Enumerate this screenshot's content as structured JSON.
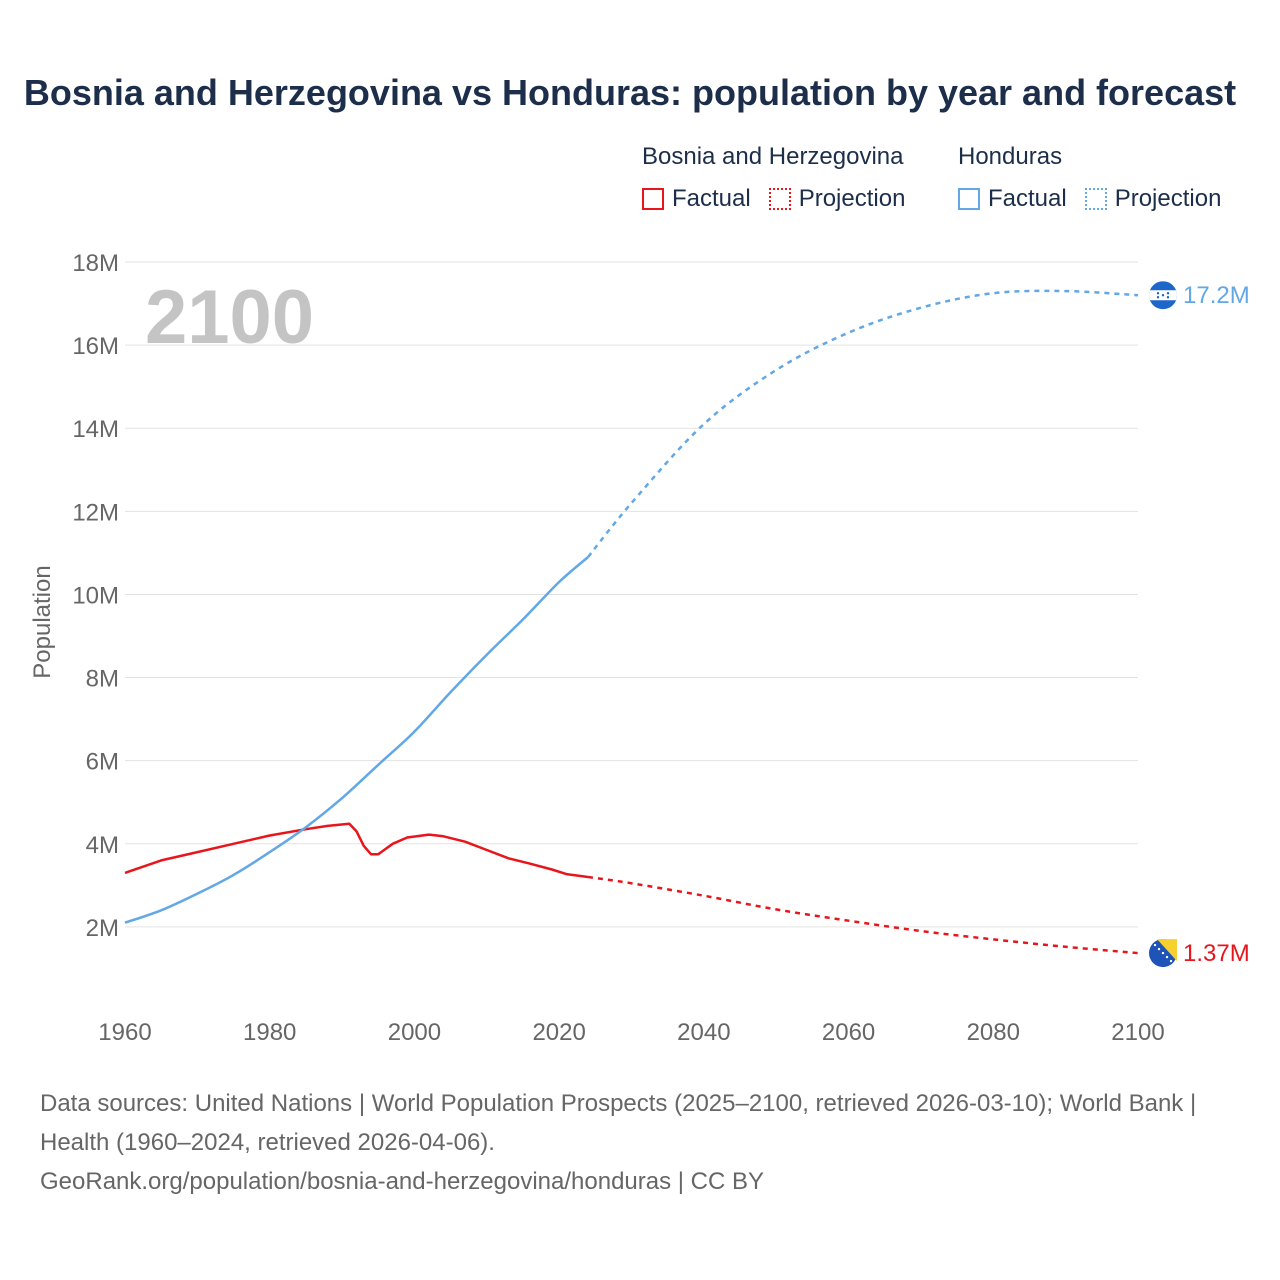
{
  "title": "Bosnia and Herzegovina vs Honduras: population by year and forecast",
  "legend": {
    "groups": [
      {
        "name": "Bosnia and Herzegovina",
        "color": "#e8151b",
        "factual": "Factual",
        "projection": "Projection"
      },
      {
        "name": "Honduras",
        "color": "#62a7e6",
        "factual": "Factual",
        "projection": "Projection"
      }
    ]
  },
  "year_label": "2100",
  "footer": {
    "line1": "Data sources: United Nations | World Population Prospects (2025–2100, retrieved 2026-03-10); World Bank | Health (1960–2024, retrieved 2026-04-06).",
    "line2": "GeoRank.org/population/bosnia-and-herzegovina/honduras | CC BY"
  },
  "chart_data": {
    "type": "line",
    "title": "Bosnia and Herzegovina vs Honduras: population by year and forecast",
    "xlabel": "",
    "ylabel": "Population",
    "xlim": [
      1960,
      2100
    ],
    "ylim": [
      0,
      18000000
    ],
    "x_ticks": [
      1960,
      1980,
      2000,
      2020,
      2040,
      2060,
      2080,
      2100
    ],
    "x_tick_labels": [
      "1960",
      "1980",
      "2000",
      "2020",
      "2040",
      "2060",
      "2080",
      "2100"
    ],
    "y_ticks": [
      2000000,
      4000000,
      6000000,
      8000000,
      10000000,
      12000000,
      14000000,
      16000000,
      18000000
    ],
    "y_tick_labels": [
      "2M",
      "4M",
      "6M",
      "8M",
      "10M",
      "12M",
      "14M",
      "16M",
      "18M"
    ],
    "grid": true,
    "legend_position": "top-right",
    "series": [
      {
        "name": "Bosnia and Herzegovina",
        "color": "#e8151b",
        "end_label": "1.37M",
        "factual": [
          [
            1960,
            3300000
          ],
          [
            1965,
            3600000
          ],
          [
            1970,
            3800000
          ],
          [
            1975,
            4000000
          ],
          [
            1980,
            4200000
          ],
          [
            1985,
            4350000
          ],
          [
            1988,
            4430000
          ],
          [
            1991,
            4480000
          ],
          [
            1992,
            4300000
          ],
          [
            1993,
            3950000
          ],
          [
            1994,
            3750000
          ],
          [
            1995,
            3750000
          ],
          [
            1997,
            4000000
          ],
          [
            1999,
            4150000
          ],
          [
            2002,
            4220000
          ],
          [
            2004,
            4180000
          ],
          [
            2007,
            4050000
          ],
          [
            2010,
            3850000
          ],
          [
            2013,
            3650000
          ],
          [
            2016,
            3520000
          ],
          [
            2019,
            3380000
          ],
          [
            2021,
            3270000
          ],
          [
            2024,
            3200000
          ]
        ],
        "projection": [
          [
            2024,
            3200000
          ],
          [
            2030,
            3050000
          ],
          [
            2040,
            2750000
          ],
          [
            2050,
            2420000
          ],
          [
            2060,
            2150000
          ],
          [
            2070,
            1900000
          ],
          [
            2080,
            1700000
          ],
          [
            2090,
            1520000
          ],
          [
            2100,
            1370000
          ]
        ]
      },
      {
        "name": "Honduras",
        "color": "#62a7e6",
        "end_label": "17.2M",
        "factual": [
          [
            1960,
            2100000
          ],
          [
            1965,
            2400000
          ],
          [
            1970,
            2800000
          ],
          [
            1975,
            3250000
          ],
          [
            1980,
            3800000
          ],
          [
            1985,
            4400000
          ],
          [
            1990,
            5100000
          ],
          [
            1995,
            5900000
          ],
          [
            2000,
            6700000
          ],
          [
            2005,
            7650000
          ],
          [
            2010,
            8550000
          ],
          [
            2015,
            9400000
          ],
          [
            2020,
            10300000
          ],
          [
            2024,
            10900000
          ]
        ],
        "projection": [
          [
            2024,
            10900000
          ],
          [
            2030,
            12200000
          ],
          [
            2040,
            14100000
          ],
          [
            2050,
            15400000
          ],
          [
            2060,
            16300000
          ],
          [
            2070,
            16900000
          ],
          [
            2080,
            17250000
          ],
          [
            2090,
            17300000
          ],
          [
            2100,
            17200000
          ]
        ]
      }
    ]
  }
}
